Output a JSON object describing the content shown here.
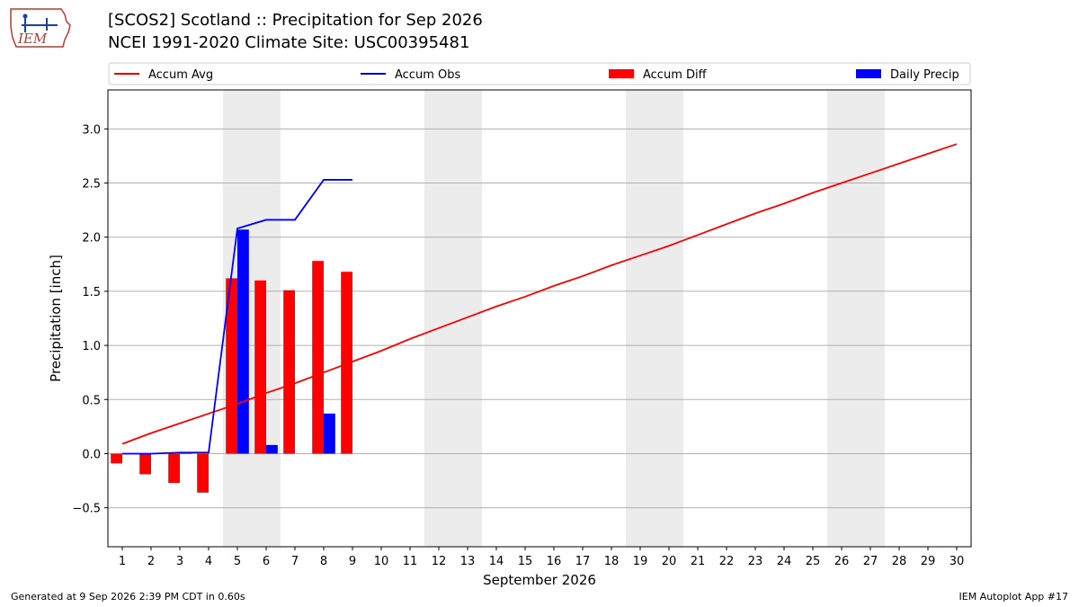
{
  "header": {
    "title_line1": "[SCOS2] Scotland :: Precipitation for Sep 2026",
    "title_line2": "NCEI 1991-2020 Climate Site: USC00395481",
    "logo_text": "IEM"
  },
  "footer": {
    "generated": "Generated at 9 Sep 2026 2:39 PM CDT in 0.60s",
    "app": "IEM Autoplot App #17"
  },
  "chart_data": {
    "type": "bar",
    "xlabel": "September 2026",
    "ylabel": "Precipitation [inch]",
    "x": [
      1,
      2,
      3,
      4,
      5,
      6,
      7,
      8,
      9,
      10,
      11,
      12,
      13,
      14,
      15,
      16,
      17,
      18,
      19,
      20,
      21,
      22,
      23,
      24,
      25,
      26,
      27,
      28,
      29,
      30
    ],
    "xlim": [
      0.5,
      30.5
    ],
    "ylim": [
      -0.86,
      3.36
    ],
    "yticks": [
      -0.5,
      0.0,
      0.5,
      1.0,
      1.5,
      2.0,
      2.5,
      3.0
    ],
    "ytick_labels": [
      "−0.5",
      "0.0",
      "0.5",
      "1.0",
      "1.5",
      "2.0",
      "2.5",
      "3.0"
    ],
    "grid": "horizontal",
    "legend_position": "top",
    "weekend_shading": [
      [
        4.5,
        6.5
      ],
      [
        11.5,
        13.5
      ],
      [
        18.5,
        20.5
      ],
      [
        25.5,
        27.5
      ]
    ],
    "series": [
      {
        "name": "Accum Avg",
        "kind": "line",
        "color": "#ff0000",
        "x": [
          1,
          2,
          3,
          4,
          5,
          6,
          7,
          8,
          9,
          10,
          11,
          12,
          13,
          14,
          15,
          16,
          17,
          18,
          19,
          20,
          21,
          22,
          23,
          24,
          25,
          26,
          27,
          28,
          29,
          30
        ],
        "values": [
          0.09,
          0.19,
          0.28,
          0.37,
          0.46,
          0.56,
          0.65,
          0.75,
          0.85,
          0.95,
          1.06,
          1.16,
          1.26,
          1.36,
          1.45,
          1.55,
          1.64,
          1.74,
          1.83,
          1.92,
          2.02,
          2.12,
          2.22,
          2.31,
          2.41,
          2.5,
          2.59,
          2.68,
          2.77,
          2.86
        ]
      },
      {
        "name": "Accum Obs",
        "kind": "line",
        "color": "#0000ff",
        "x": [
          1,
          2,
          3,
          4,
          5,
          6,
          7,
          8,
          9
        ],
        "values": [
          0.0,
          0.0,
          0.01,
          0.01,
          2.08,
          2.16,
          2.16,
          2.53,
          2.53
        ]
      },
      {
        "name": "Accum Diff",
        "kind": "bar",
        "color": "#ff0000",
        "x": [
          1,
          2,
          3,
          4,
          5,
          6,
          7,
          8,
          9
        ],
        "values": [
          -0.09,
          -0.19,
          -0.27,
          -0.36,
          1.62,
          1.6,
          1.51,
          1.78,
          1.68
        ]
      },
      {
        "name": "Daily Precip",
        "kind": "bar",
        "color": "#0000ff",
        "x": [
          1,
          2,
          3,
          4,
          5,
          6,
          7,
          8,
          9
        ],
        "values": [
          0.0,
          0.0,
          0.01,
          0.0,
          2.07,
          0.08,
          0.0,
          0.37,
          0.0
        ]
      }
    ]
  }
}
